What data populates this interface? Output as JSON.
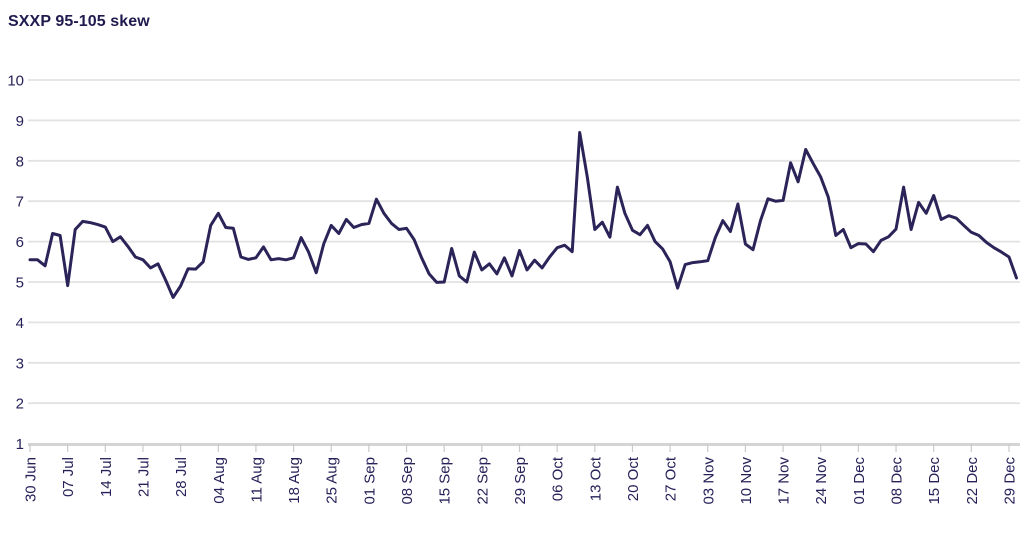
{
  "chart_data": {
    "type": "line",
    "title": "SXXP 95-105 skew",
    "xlabel": "",
    "ylabel": "",
    "ylim": [
      1,
      10
    ],
    "y_ticks": [
      1,
      2,
      3,
      4,
      5,
      6,
      7,
      8,
      9,
      10
    ],
    "grid": "horizontal",
    "legend_position": "none",
    "x_tick_every": 5,
    "x_tick_labels": [
      "30 Jun",
      "07 Jul",
      "14 Jul",
      "21 Jul",
      "28 Jul",
      "04 Aug",
      "11 Aug",
      "18 Aug",
      "25 Aug",
      "01 Sep",
      "08 Sep",
      "15 Sep",
      "22 Sep",
      "29 Sep",
      "06 Oct",
      "13 Oct",
      "20 Oct",
      "27 Oct",
      "03 Nov",
      "10 Nov",
      "17 Nov",
      "24 Nov",
      "01 Dec",
      "08 Dec",
      "15 Dec",
      "22 Dec",
      "29 Dec"
    ],
    "series_name": "SXXP 95-105 skew",
    "values": [
      5.55,
      5.55,
      5.4,
      6.2,
      6.15,
      4.91,
      6.3,
      6.5,
      6.47,
      6.42,
      6.36,
      6.0,
      6.12,
      5.88,
      5.62,
      5.55,
      5.35,
      5.45,
      5.05,
      4.62,
      4.9,
      5.33,
      5.32,
      5.5,
      6.4,
      6.7,
      6.35,
      6.33,
      5.62,
      5.56,
      5.6,
      5.87,
      5.55,
      5.58,
      5.55,
      5.6,
      6.1,
      5.74,
      5.23,
      5.94,
      6.4,
      6.2,
      6.55,
      6.35,
      6.42,
      6.45,
      7.05,
      6.7,
      6.45,
      6.3,
      6.33,
      6.05,
      5.6,
      5.2,
      4.99,
      5.0,
      5.83,
      5.15,
      5.0,
      5.74,
      5.3,
      5.45,
      5.2,
      5.6,
      5.15,
      5.78,
      5.3,
      5.54,
      5.35,
      5.62,
      5.85,
      5.91,
      5.75,
      8.7,
      7.6,
      6.3,
      6.48,
      6.11,
      7.35,
      6.7,
      6.28,
      6.17,
      6.4,
      6.0,
      5.82,
      5.5,
      4.85,
      5.43,
      5.48,
      5.5,
      5.53,
      6.1,
      6.52,
      6.25,
      6.93,
      5.94,
      5.8,
      6.52,
      7.06,
      7.0,
      7.02,
      7.95,
      7.48,
      8.28,
      7.93,
      7.6,
      7.1,
      6.15,
      6.3,
      5.85,
      5.95,
      5.94,
      5.75,
      6.03,
      6.12,
      6.31,
      7.35,
      6.3,
      6.97,
      6.7,
      7.14,
      6.55,
      6.64,
      6.58,
      6.4,
      6.23,
      6.15,
      5.98,
      5.85,
      5.74,
      5.62,
      5.1
    ],
    "colors": {
      "line": "#2a2458",
      "text": "#262158",
      "title_text": "#1f1b4e",
      "gridline": "#e2e2e2",
      "axis_line": "#d4d4d4",
      "tick_mark": "#c9c9c9",
      "background": "#ffffff"
    }
  }
}
